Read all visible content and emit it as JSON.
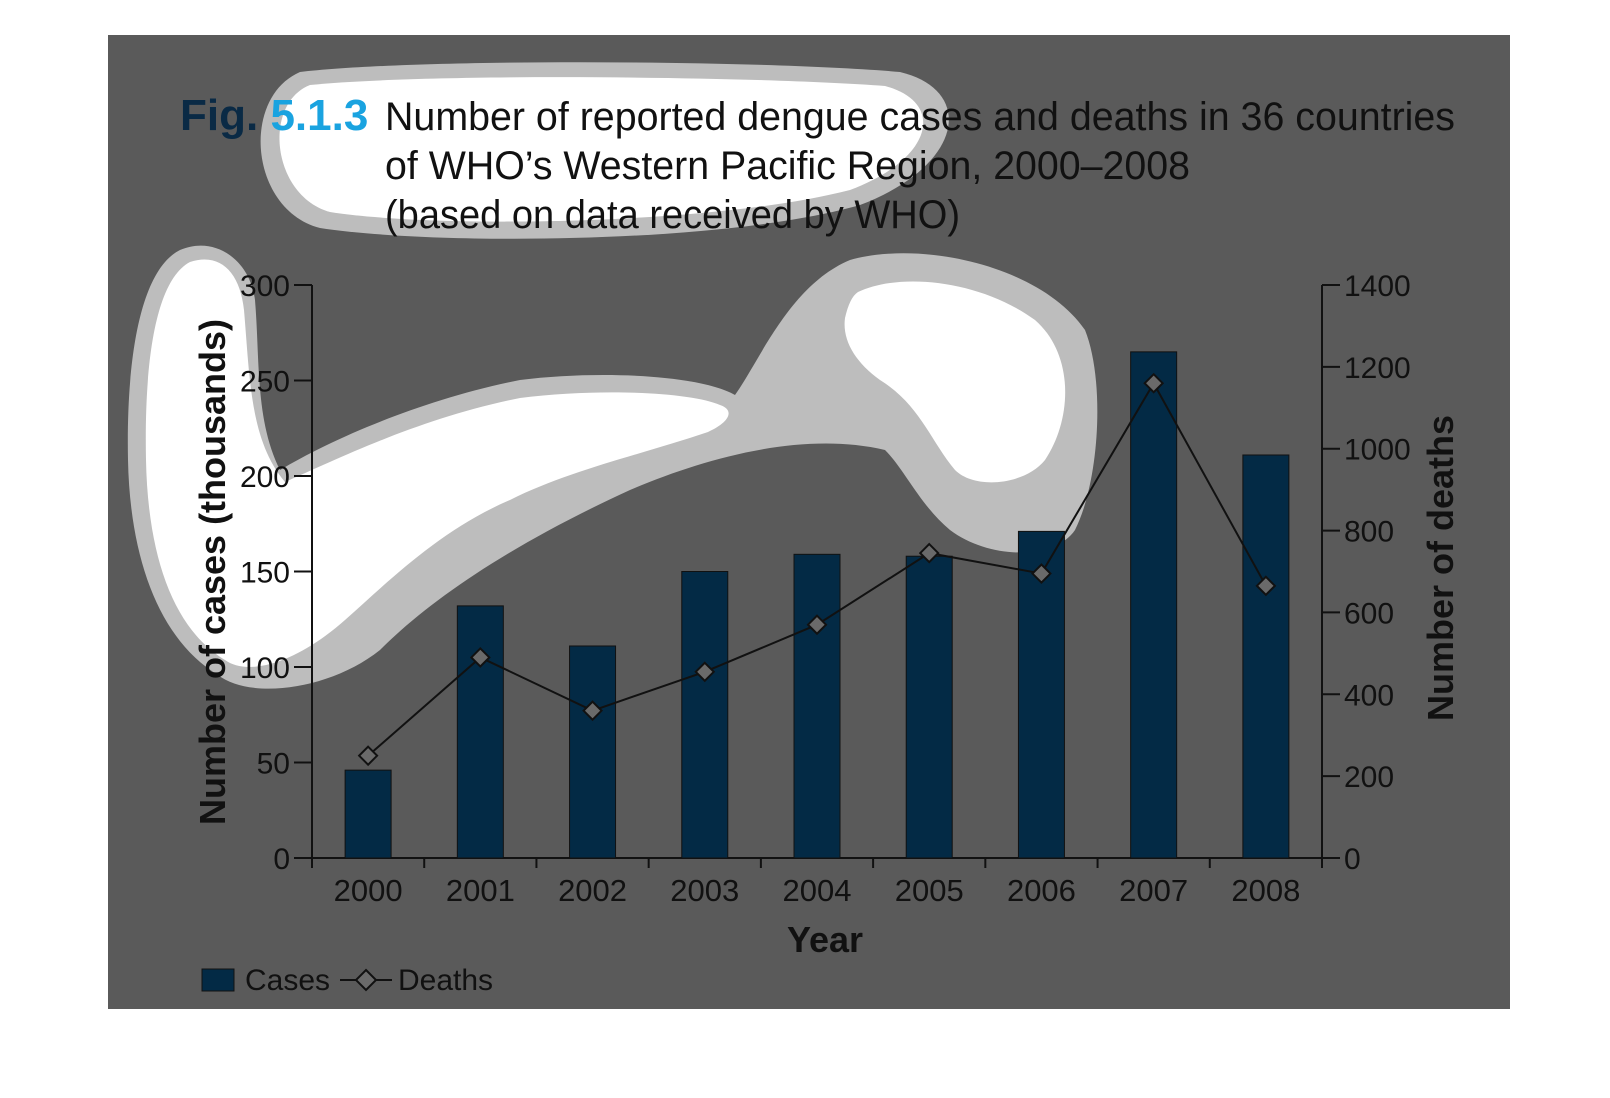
{
  "figure": {
    "number": "Fig. 5.1.3",
    "number_prefix": "Fig.",
    "number_digits": "5.1.3",
    "title_lines": [
      "Number of reported dengue cases and deaths in 36 countries",
      "of WHO’s Western Pacific Region, 2000–2008",
      "(based on data received by WHO)"
    ]
  },
  "colors": {
    "panel_background": "#5a5a5a",
    "bar_fill": "#032a45",
    "line": "#111111",
    "marker_fill": "#6a6a6a",
    "fig_prefix": "#0a2a45",
    "fig_digits": "#1aa3e0",
    "highlight_blob": "#ffffff",
    "highlight_halo": "#bdbdbd"
  },
  "chart_data": {
    "type": "bar",
    "categories": [
      "2000",
      "2001",
      "2002",
      "2003",
      "2004",
      "2005",
      "2006",
      "2007",
      "2008"
    ],
    "series": [
      {
        "name": "Cases",
        "type": "bar",
        "axis": "left",
        "values": [
          46,
          132,
          111,
          150,
          159,
          158,
          171,
          265,
          211
        ]
      },
      {
        "name": "Deaths",
        "type": "line",
        "axis": "right",
        "marker": "diamond",
        "values": [
          250,
          490,
          360,
          455,
          570,
          745,
          695,
          1160,
          665
        ]
      }
    ],
    "xlabel": "Year",
    "ylabel": "Number of cases (thousands)",
    "y2label": "Number of deaths",
    "ylim": [
      0,
      300
    ],
    "y2lim": [
      0,
      1400
    ],
    "yticks": [
      "0",
      "50",
      "100",
      "150",
      "200",
      "250",
      "300"
    ],
    "y2ticks": [
      "0",
      "200",
      "400",
      "600",
      "800",
      "1000",
      "1200",
      "1400"
    ],
    "grid": false,
    "legend": "bottom-left",
    "legend_entries": [
      "Cases",
      "Deaths"
    ]
  }
}
